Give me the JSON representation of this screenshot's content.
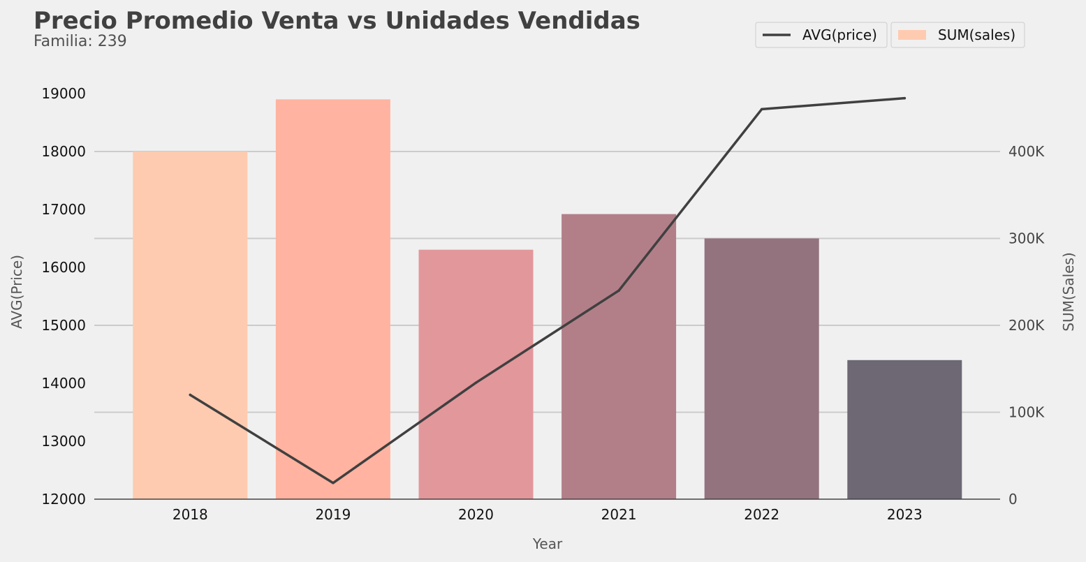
{
  "chart_data": {
    "type": "bar",
    "title": "Precio Promedio Venta vs Unidades Vendidas",
    "subtitle": "Familia: 239",
    "xlabel": "Year",
    "ylabel_left": "AVG(Price)",
    "ylabel_right": "SUM(Sales)",
    "categories": [
      "2018",
      "2019",
      "2020",
      "2021",
      "2022",
      "2023"
    ],
    "series": [
      {
        "name": "SUM(sales)",
        "type": "bar",
        "axis": "right",
        "values": [
          400000,
          460000,
          287000,
          328000,
          300000,
          160000
        ],
        "colors": [
          "#ffcbb0",
          "#ffb3a0",
          "#e2979b",
          "#b27f89",
          "#93737e",
          "#6d6874"
        ]
      },
      {
        "name": "AVG(price)",
        "type": "line",
        "axis": "left",
        "values": [
          13800,
          12280,
          14010,
          15600,
          18730,
          18920
        ],
        "color": "#404040"
      }
    ],
    "y_left": {
      "ylim": [
        12000,
        19100
      ],
      "ticks": [
        12000,
        13000,
        14000,
        15000,
        16000,
        17000,
        18000,
        19000
      ],
      "tick_labels": [
        "12000",
        "13000",
        "14000",
        "15000",
        "16000",
        "17000",
        "18000",
        "19000"
      ]
    },
    "y_right": {
      "ylim": [
        0,
        465000
      ],
      "ticks": [
        0,
        100000,
        200000,
        300000,
        400000
      ],
      "tick_labels": [
        "0",
        "100K",
        "200K",
        "300K",
        "400K"
      ]
    },
    "grid": "horizontal, right axis",
    "legend_position": "top-right",
    "background_color": "#f0f0f0"
  }
}
